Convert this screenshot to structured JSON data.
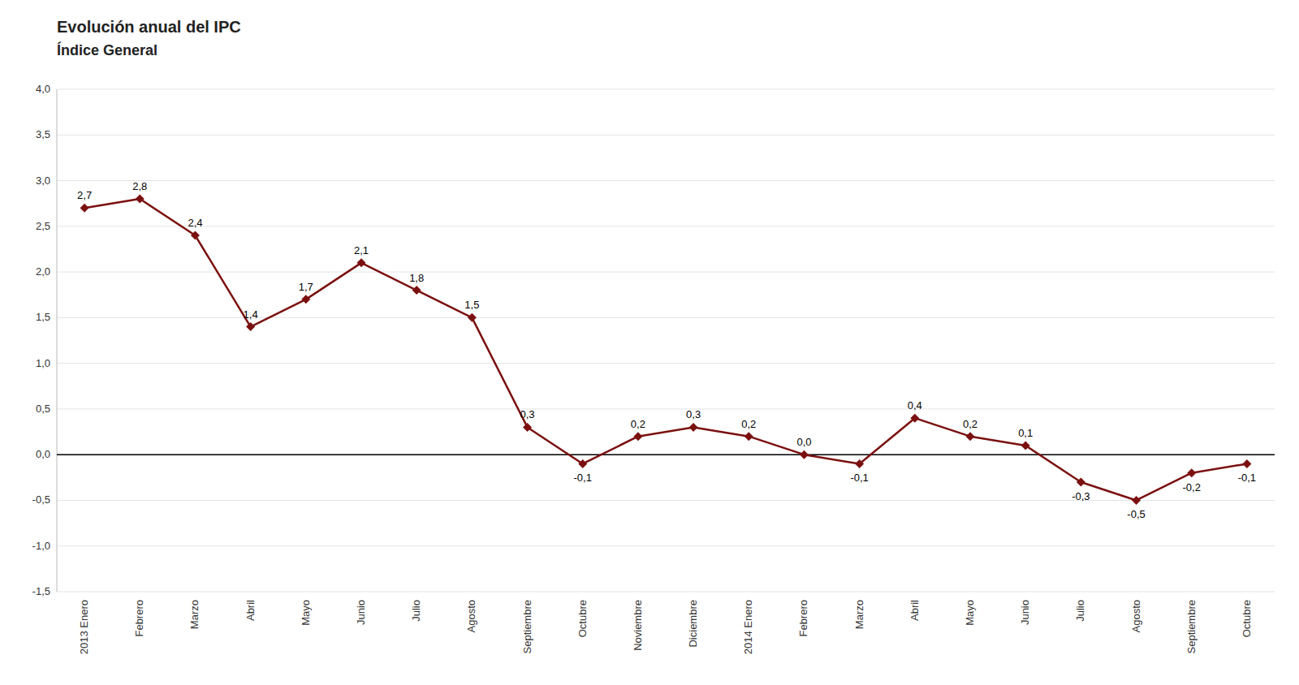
{
  "chart_data": {
    "type": "line",
    "title": "Evolución anual del IPC",
    "subtitle": "Índice General",
    "categories": [
      "2013 Enero",
      "Febrero",
      "Marzo",
      "Abril",
      "Mayo",
      "Junio",
      "Julio",
      "Agosto",
      "Septiembre",
      "Octubre",
      "Noviembre",
      "Diciembre",
      "2014 Enero",
      "Febrero",
      "Marzo",
      "Abril",
      "Mayo",
      "Junio",
      "Julio",
      "Agosto",
      "Septiembre",
      "Octubre"
    ],
    "values": [
      2.7,
      2.8,
      2.4,
      1.4,
      1.7,
      2.1,
      1.8,
      1.5,
      0.3,
      -0.1,
      0.2,
      0.3,
      0.2,
      0.0,
      -0.1,
      0.4,
      0.2,
      0.1,
      -0.3,
      -0.5,
      -0.2,
      -0.1
    ],
    "value_labels": [
      "2,7",
      "2,8",
      "2,4",
      "1,4",
      "1,7",
      "2,1",
      "1,8",
      "1,5",
      "0,3",
      "-0,1",
      "0,2",
      "0,3",
      "0,2",
      "0,0",
      "-0,1",
      "0,4",
      "0,2",
      "0,1",
      "-0,3",
      "-0,5",
      "-0,2",
      "-0,1"
    ],
    "data_labels": true,
    "color": "#7B1010",
    "marker": "diamond",
    "ylim": [
      -1.5,
      4.0
    ],
    "yticks": [
      {
        "value": -1.5,
        "label": "-1,5"
      },
      {
        "value": -1.0,
        "label": "-1,0"
      },
      {
        "value": -0.5,
        "label": "-0,5"
      },
      {
        "value": 0.0,
        "label": "0,0"
      },
      {
        "value": 0.5,
        "label": "0,5"
      },
      {
        "value": 1.0,
        "label": "1,0"
      },
      {
        "value": 1.5,
        "label": "1,5"
      },
      {
        "value": 2.0,
        "label": "2,0"
      },
      {
        "value": 2.5,
        "label": "2,5"
      },
      {
        "value": 3.0,
        "label": "3,0"
      },
      {
        "value": 3.5,
        "label": "3,5"
      },
      {
        "value": 4.0,
        "label": "4,0"
      }
    ],
    "grid": true
  }
}
